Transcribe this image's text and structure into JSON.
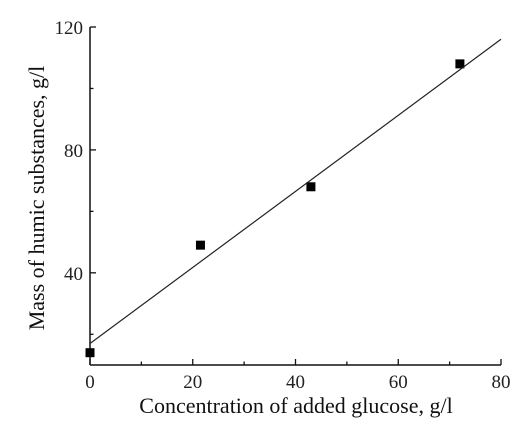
{
  "chart_data": {
    "type": "scatter",
    "xlabel": "Concentration of added glucose, g/l",
    "ylabel": "Mass of humic  substances, g/l",
    "xlim": [
      0,
      80
    ],
    "ylim": [
      10,
      120
    ],
    "x_ticks": [
      0,
      20,
      40,
      60,
      80
    ],
    "y_ticks": [
      40,
      80,
      120
    ],
    "x_tick_labels": [
      "0",
      "20",
      "40",
      "60",
      "80"
    ],
    "y_tick_labels": [
      "40",
      "80",
      "120"
    ],
    "grid": false,
    "series": [
      {
        "type": "scatter",
        "marker": "square",
        "color": "#000000",
        "x": [
          0,
          21.5,
          43,
          72
        ],
        "y": [
          14,
          49,
          68,
          108
        ]
      },
      {
        "type": "line",
        "color": "#222222",
        "x": [
          0,
          80
        ],
        "y": [
          17,
          116
        ]
      }
    ]
  }
}
